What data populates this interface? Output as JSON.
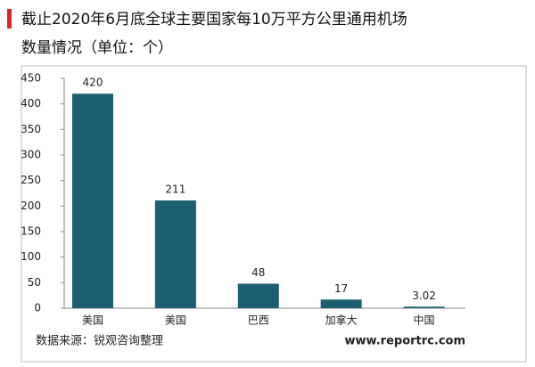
{
  "chart_data": {
    "type": "bar",
    "title": [
      "截止2020年6月底全球主要国家每10万平方公里通用机场",
      "数量情况（单位：个）"
    ],
    "categories": [
      "美国",
      "美国",
      "巴西",
      "加拿大",
      "中国"
    ],
    "values": [
      420,
      211,
      48,
      17,
      3.02
    ],
    "color": "#1b5f72",
    "ylim": [
      0,
      450
    ],
    "yticks": [
      0,
      50,
      100,
      150,
      200,
      250,
      300,
      350,
      400,
      450
    ],
    "grid": false,
    "source": "数据来源：锐观咨询整理",
    "website": "www.reportrc.com"
  }
}
